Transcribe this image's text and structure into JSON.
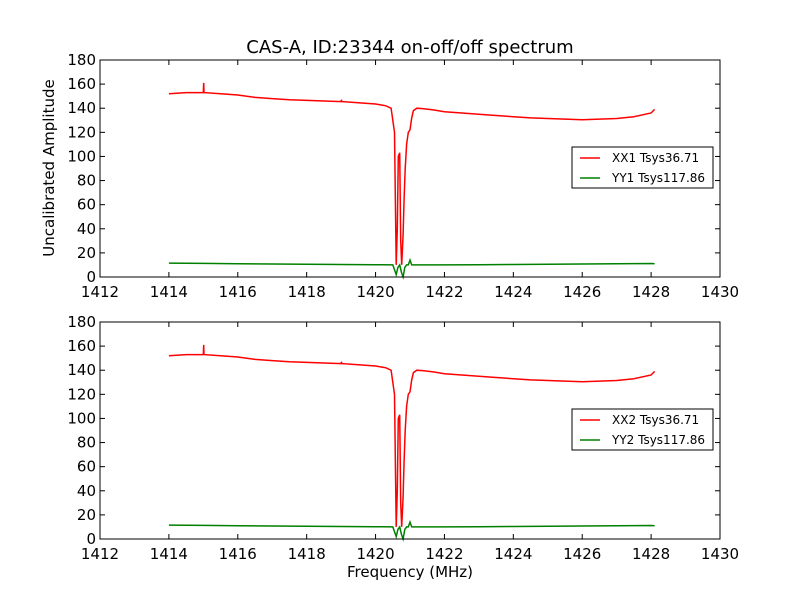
{
  "chart_data": [
    {
      "type": "line",
      "title": "CAS-A, ID:23344 on-off/off spectrum",
      "xlabel": "",
      "ylabel": "Uncalibrated Amplitude",
      "xlim": [
        1412,
        1430
      ],
      "ylim": [
        0,
        180
      ],
      "xticks": [
        "1412",
        "1414",
        "1416",
        "1418",
        "1420",
        "1422",
        "1424",
        "1426",
        "1428",
        "1430"
      ],
      "yticks": [
        "0",
        "20",
        "40",
        "60",
        "80",
        "100",
        "120",
        "140",
        "160",
        "180"
      ],
      "legend_position": "right",
      "series": [
        {
          "name": "XX1 Tsys36.71",
          "color": "#ff0000",
          "x": [
            1414.0,
            1414.5,
            1415.0,
            1415.01,
            1415.02,
            1415.5,
            1416.0,
            1416.5,
            1417.0,
            1417.5,
            1418.0,
            1418.5,
            1419.0,
            1419.01,
            1419.02,
            1419.5,
            1420.0,
            1420.3,
            1420.45,
            1420.55,
            1420.6,
            1420.63,
            1420.66,
            1420.7,
            1420.73,
            1420.76,
            1420.8,
            1420.83,
            1420.86,
            1420.9,
            1420.95,
            1421.0,
            1421.05,
            1421.1,
            1421.2,
            1421.4,
            1421.7,
            1422.0,
            1422.5,
            1423.0,
            1423.5,
            1424.0,
            1424.5,
            1425.0,
            1425.5,
            1426.0,
            1426.5,
            1427.0,
            1427.5,
            1428.0,
            1428.1
          ],
          "y": [
            152,
            153,
            153,
            161,
            153,
            152,
            151,
            149,
            148,
            147,
            146.5,
            146,
            145.5,
            147,
            145.5,
            144.5,
            143.5,
            142,
            140,
            120,
            10,
            40,
            100,
            103,
            30,
            10,
            35,
            65,
            90,
            110,
            120,
            122,
            132,
            138,
            140,
            139.5,
            138.5,
            137,
            136,
            135,
            134,
            133,
            132,
            131.5,
            131,
            130.5,
            131,
            131.5,
            133,
            136,
            139
          ]
        },
        {
          "name": "YY1 Tsys117.86",
          "color": "#008000",
          "x": [
            1414.0,
            1415.0,
            1416.0,
            1417.0,
            1418.0,
            1419.0,
            1420.0,
            1420.5,
            1420.6,
            1420.65,
            1420.7,
            1420.75,
            1420.8,
            1420.85,
            1420.9,
            1420.95,
            1421.0,
            1421.05,
            1421.1,
            1421.5,
            1422.0,
            1423.0,
            1424.0,
            1425.0,
            1426.0,
            1427.0,
            1428.0,
            1428.1
          ],
          "y": [
            11.5,
            11.3,
            11,
            10.8,
            10.6,
            10.4,
            10.2,
            10,
            2,
            8,
            10,
            4,
            0,
            8,
            10,
            10,
            14,
            10,
            10,
            10,
            10,
            10.2,
            10.4,
            10.6,
            10.8,
            11,
            11.2,
            11
          ]
        }
      ]
    },
    {
      "type": "line",
      "title": "",
      "xlabel": "Frequency (MHz)",
      "ylabel": "",
      "xlim": [
        1412,
        1430
      ],
      "ylim": [
        0,
        180
      ],
      "xticks": [
        "1412",
        "1414",
        "1416",
        "1418",
        "1420",
        "1422",
        "1424",
        "1426",
        "1428",
        "1430"
      ],
      "yticks": [
        "0",
        "20",
        "40",
        "60",
        "80",
        "100",
        "120",
        "140",
        "160",
        "180"
      ],
      "legend_position": "right",
      "series": [
        {
          "name": "XX2 Tsys36.71",
          "color": "#ff0000",
          "x": [
            1414.0,
            1414.5,
            1415.0,
            1415.01,
            1415.02,
            1415.5,
            1416.0,
            1416.5,
            1417.0,
            1417.5,
            1418.0,
            1418.5,
            1419.0,
            1419.01,
            1419.02,
            1419.5,
            1420.0,
            1420.3,
            1420.45,
            1420.55,
            1420.6,
            1420.63,
            1420.66,
            1420.7,
            1420.73,
            1420.76,
            1420.8,
            1420.83,
            1420.86,
            1420.9,
            1420.95,
            1421.0,
            1421.05,
            1421.1,
            1421.2,
            1421.4,
            1421.7,
            1422.0,
            1422.5,
            1423.0,
            1423.5,
            1424.0,
            1424.5,
            1425.0,
            1425.5,
            1426.0,
            1426.5,
            1427.0,
            1427.5,
            1428.0,
            1428.1
          ],
          "y": [
            152,
            153,
            153,
            161,
            153,
            152,
            151,
            149,
            148,
            147,
            146.5,
            146,
            145.5,
            147,
            145.5,
            144.5,
            143.5,
            142,
            140,
            120,
            10,
            40,
            100,
            103,
            30,
            10,
            35,
            65,
            90,
            110,
            120,
            122,
            132,
            138,
            140,
            139.5,
            138.5,
            137,
            136,
            135,
            134,
            133,
            132,
            131.5,
            131,
            130.5,
            131,
            131.5,
            133,
            136,
            139
          ]
        },
        {
          "name": "YY2 Tsys117.86",
          "color": "#008000",
          "x": [
            1414.0,
            1415.0,
            1416.0,
            1417.0,
            1418.0,
            1419.0,
            1420.0,
            1420.5,
            1420.6,
            1420.65,
            1420.7,
            1420.75,
            1420.8,
            1420.85,
            1420.9,
            1420.95,
            1421.0,
            1421.05,
            1421.1,
            1421.5,
            1422.0,
            1423.0,
            1424.0,
            1425.0,
            1426.0,
            1427.0,
            1428.0,
            1428.1
          ],
          "y": [
            11.5,
            11.3,
            11,
            10.8,
            10.6,
            10.4,
            10.2,
            10,
            2,
            8,
            10,
            4,
            0,
            8,
            10,
            10,
            14,
            10,
            10,
            10,
            10,
            10.2,
            10.4,
            10.6,
            10.8,
            11,
            11.2,
            11
          ]
        }
      ]
    }
  ]
}
